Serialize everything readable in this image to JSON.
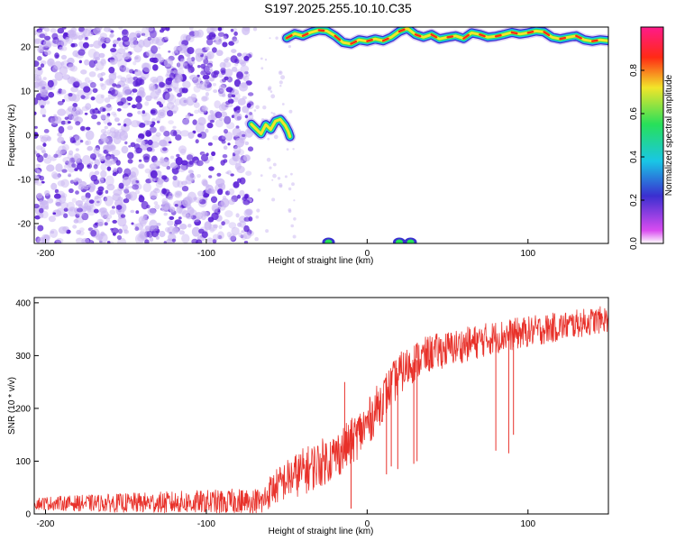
{
  "title": "S197.2025.255.10.10.C35",
  "colors": {
    "snr_line": "#e8312a",
    "speckle_dark": "#5a1fd6",
    "speckle_light": "#c9b5f2",
    "ridge": [
      "#3a2fd0",
      "#19c6e6",
      "#27e05a",
      "#f2e52a",
      "#ff2a14"
    ]
  },
  "chart_data": [
    {
      "type": "heatmap",
      "title": "S197.2025.255.10.10.C35",
      "xlabel": "Height of straight line (km)",
      "ylabel": "Frequency (Hz)",
      "xlim": [
        -207,
        150
      ],
      "ylim": [
        -24.5,
        24.5
      ],
      "xticks": [
        -200,
        -100,
        0,
        100
      ],
      "xtick_labels": [
        "-200",
        "-100",
        "0",
        "100"
      ],
      "yticks": [
        -20,
        -10,
        0,
        10,
        20
      ],
      "ytick_labels": [
        "-20",
        "-10",
        "0",
        "10",
        "20"
      ],
      "colorbar": {
        "label": "Normalized spectral amplitude",
        "range": [
          0,
          1
        ],
        "ticks": [
          0.0,
          0.2,
          0.4,
          0.6,
          0.8
        ],
        "tick_labels": [
          "0.0",
          "0.2",
          "0.4",
          "0.6",
          "0.8"
        ],
        "colormap": "rainbow (magenta-blue-cyan-green-yellow-red)"
      },
      "noise_region": {
        "x": [
          -207,
          -72
        ],
        "y": [
          -24.5,
          24.5
        ],
        "amplitude": [
          0.0,
          0.2
        ]
      },
      "ridge_main": {
        "amplitude": 0.95,
        "x": [
          -50,
          -45,
          -40,
          -35,
          -30,
          -25,
          -20,
          -15,
          -10,
          -5,
          0,
          5,
          10,
          15,
          20,
          25,
          30,
          35,
          40,
          45,
          50,
          55,
          60,
          65,
          70,
          75,
          80,
          85,
          90,
          95,
          100,
          105,
          110,
          115,
          120,
          125,
          130,
          135,
          140,
          145,
          150
        ],
        "y": [
          22,
          23,
          22.5,
          23.3,
          23.8,
          23.6,
          22.5,
          21,
          20.7,
          21.6,
          21.3,
          21.8,
          21.4,
          22.2,
          23.5,
          24.2,
          22.8,
          22.2,
          22.8,
          21.8,
          22.2,
          22.5,
          21.9,
          23.2,
          22.8,
          22.2,
          22.4,
          22.8,
          23.3,
          22.9,
          23.2,
          23.6,
          23.4,
          22.2,
          21.8,
          22.2,
          22.5,
          21.6,
          21.3,
          21.6,
          21.4
        ]
      },
      "ridge_low": {
        "amplitude": 0.7,
        "x": [
          -72,
          -69,
          -66,
          -63,
          -60,
          -57,
          -54,
          -51,
          -49,
          -48
        ],
        "y": [
          2.5,
          1.4,
          0.3,
          2.4,
          1.3,
          3.2,
          3.6,
          2.2,
          0.8,
          -0.3
        ]
      },
      "bottom_spots": {
        "x": [
          -24,
          20,
          27
        ],
        "y": [
          -24.2,
          -24.2,
          -24.2
        ],
        "amplitude": 0.8
      }
    },
    {
      "type": "line",
      "xlabel": "Height of straight line (km)",
      "ylabel": "SNR (10 * v/v)",
      "xlim": [
        -207,
        150
      ],
      "ylim": [
        0,
        410
      ],
      "xticks": [
        -200,
        -100,
        0,
        100
      ],
      "xtick_labels": [
        "-200",
        "-100",
        "0",
        "100"
      ],
      "yticks": [
        0,
        100,
        200,
        300,
        400
      ],
      "ytick_labels": [
        "0",
        "100",
        "200",
        "300",
        "400"
      ],
      "trend": {
        "x": [
          -207,
          -65,
          -60,
          -50,
          -40,
          -30,
          -20,
          -10,
          0,
          10,
          20,
          30,
          40,
          60,
          80,
          100,
          120,
          150
        ],
        "y": [
          20,
          22,
          45,
          65,
          80,
          95,
          110,
          135,
          170,
          220,
          265,
          290,
          305,
          320,
          335,
          345,
          355,
          370
        ]
      },
      "noise_amplitude": [
        12,
        28,
        45,
        45,
        35,
        25
      ],
      "spikes": [
        {
          "x": -14,
          "y": 250
        },
        {
          "x": -10,
          "y": 10
        },
        {
          "x": 12,
          "y": 75
        },
        {
          "x": 15,
          "y": 90
        },
        {
          "x": 19,
          "y": 85
        },
        {
          "x": 29,
          "y": 95
        },
        {
          "x": 31,
          "y": 100
        },
        {
          "x": 80,
          "y": 120
        },
        {
          "x": 88,
          "y": 115
        },
        {
          "x": 91,
          "y": 150
        }
      ]
    }
  ]
}
